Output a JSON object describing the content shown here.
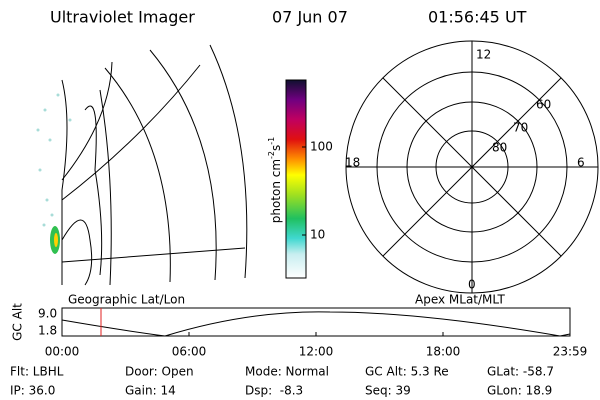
{
  "header": {
    "title": "Ultraviolet Imager",
    "date": "07 Jun 07",
    "time": "01:56:45 UT"
  },
  "colorbar": {
    "label": [
      "photon cm",
      "-2",
      "s",
      "-1"
    ],
    "ticks": [
      "100",
      "10"
    ]
  },
  "polar": {
    "mlt_labels": [
      "12",
      "18",
      "6",
      "0"
    ],
    "lat_labels": [
      "60",
      "70",
      "80"
    ]
  },
  "panel_titles": {
    "left": "Geographic Lat/Lon",
    "right": "Apex MLat/MLT"
  },
  "altitude_strip": {
    "ylabel": "GC Alt",
    "yticks": [
      "9.0",
      "1.8"
    ],
    "xticks": [
      "00:00",
      "06:00",
      "12:00",
      "18:00",
      "23:59"
    ]
  },
  "footer": {
    "rows": [
      [
        "Flt: LBHL",
        "Door: Open",
        "Mode: Normal",
        "GC Alt: 5.3 Re",
        "GLat: -58.7"
      ],
      [
        "IP: 36.0",
        "Gain: 14",
        "Dsp:  -8.3",
        "Seq: 39",
        "GLon: 18.9"
      ]
    ]
  }
}
